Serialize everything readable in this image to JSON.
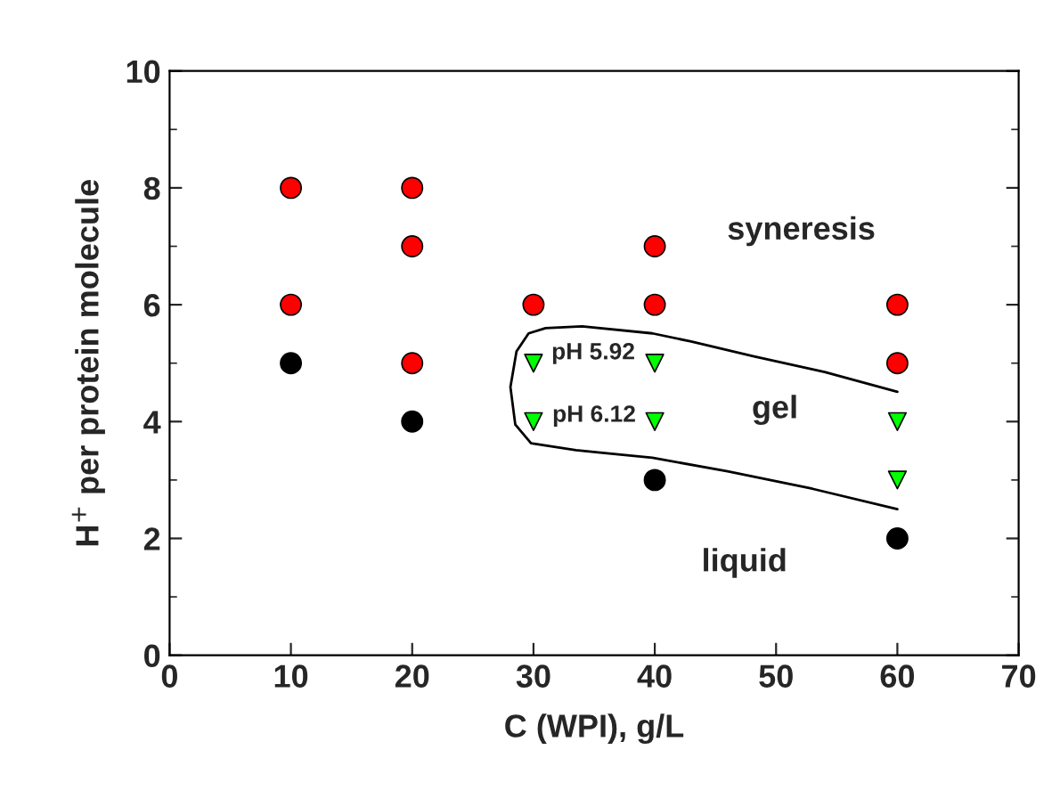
{
  "chart_data": {
    "type": "scatter",
    "xlabel": "C (WPI), g/L",
    "ylabel": "H$^{+}$ per protein molecule",
    "xlim": [
      0,
      70
    ],
    "xticks": [
      0,
      10,
      20,
      30,
      40,
      50,
      60,
      70
    ],
    "ylim": [
      0,
      10
    ],
    "yticks": [
      0,
      2,
      4,
      6,
      8,
      10
    ],
    "grid": false,
    "legend": false,
    "series": [
      {
        "color": "#ff0000",
        "marker": "circle",
        "x": [
          10,
          10,
          20,
          20,
          20,
          30,
          40,
          40,
          60,
          60
        ],
        "values": [
          8,
          6,
          8,
          7,
          5,
          6,
          7,
          6,
          6,
          5
        ]
      },
      {
        "color": "#00ff00",
        "marker": "triangle",
        "x": [
          30,
          30,
          40,
          40,
          60,
          60
        ],
        "values": [
          5,
          4,
          5,
          4,
          4,
          3
        ]
      },
      {
        "color": "#000000",
        "marker": "circle",
        "x": [
          10,
          20,
          40,
          60
        ],
        "values": [
          5,
          4,
          3,
          2
        ]
      },
      {
        "type": "line",
        "color": "#000000",
        "marker": "none",
        "line_style": "solid",
        "x": [
          60,
          54,
          48.1,
          43,
          39.8,
          34,
          31,
          29.6,
          28.6,
          28.1,
          28.5,
          29.8,
          33.5,
          39.8,
          46,
          53,
          60
        ],
        "values": [
          4.51,
          4.85,
          5.12,
          5.37,
          5.51,
          5.63,
          5.6,
          5.51,
          5.2,
          4.59,
          3.95,
          3.63,
          3.51,
          3.38,
          3.15,
          2.85,
          2.5
        ]
      }
    ],
    "annotations": [
      "syneresis",
      "gel",
      "liquid",
      "pH 5.92",
      "pH 6.12"
    ]
  }
}
